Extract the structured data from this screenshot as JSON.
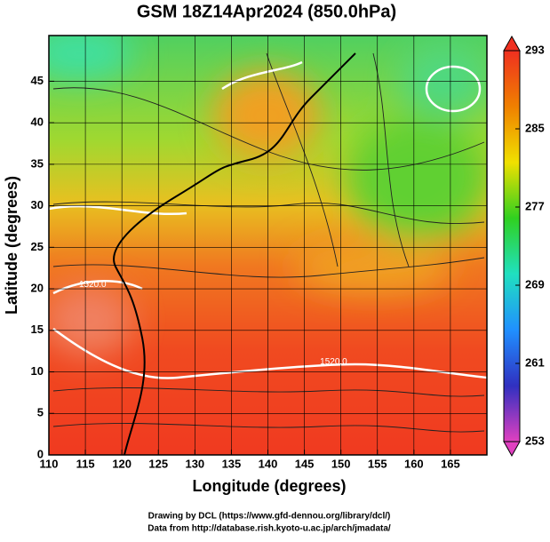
{
  "chart_data": {
    "type": "map",
    "title": "GSM 18Z14Apr2024 (850.0hPa)",
    "xlabel": "Longitude (degrees)",
    "ylabel": "Latitude  (degrees)",
    "xlim": [
      110,
      170
    ],
    "xticks": [
      110,
      115,
      120,
      125,
      130,
      135,
      140,
      145,
      150,
      155,
      160,
      165
    ],
    "ylim": [
      0,
      50.5
    ],
    "yticks": [
      0,
      5,
      10,
      15,
      20,
      25,
      30,
      35,
      40,
      45
    ],
    "grid": true,
    "colorbar": {
      "lim": [
        253,
        293
      ],
      "ticks": [
        253,
        261,
        269,
        277,
        285,
        293
      ],
      "colors": [
        "#e040c0",
        "#3030c0",
        "#2090ff",
        "#20e0c0",
        "#30d020",
        "#f0e000",
        "#f08000",
        "#f03020"
      ]
    },
    "contour_labels": [
      {
        "text": "1520.0",
        "x": 116,
        "y": 20.5
      },
      {
        "text": "1520.0",
        "x": 149,
        "y": 11.2
      }
    ],
    "credits": [
      "Drawing by DCL (https://www.gfd-dennou.org/library/dcl/)",
      "Data from http://database.rish.kyoto-u.ac.jp/arch/jmadata/"
    ]
  }
}
